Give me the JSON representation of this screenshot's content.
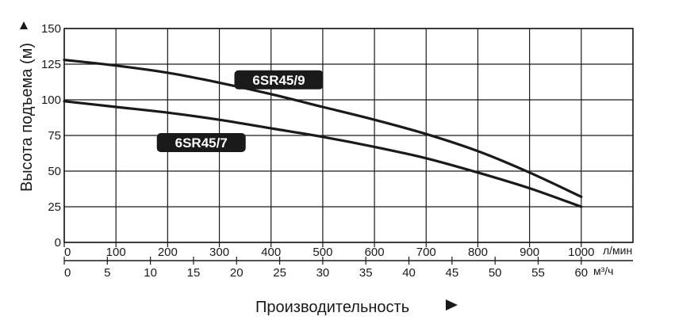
{
  "chart_data": {
    "type": "line",
    "title": "",
    "ylabel": "Высота подъема (м)",
    "xlabel": "Производительность",
    "ylim": [
      0,
      150
    ],
    "yticks": [
      0,
      25,
      50,
      75,
      100,
      125,
      150
    ],
    "x_primary": {
      "unit": "л/мин",
      "range": [
        0,
        1100
      ],
      "ticks": [
        0,
        100,
        200,
        300,
        400,
        500,
        600,
        700,
        800,
        900,
        1000
      ]
    },
    "x_secondary": {
      "unit": "м³/ч",
      "ticks": [
        0,
        5,
        10,
        15,
        20,
        25,
        30,
        35,
        40,
        45,
        50,
        55,
        60
      ]
    },
    "grid": true,
    "series": [
      {
        "name": "6SR45/9",
        "x": [
          0,
          100,
          200,
          300,
          400,
          500,
          600,
          700,
          800,
          900,
          1000
        ],
        "y": [
          128,
          124,
          119,
          112,
          104,
          95,
          86,
          76,
          64,
          49,
          32
        ]
      },
      {
        "name": "6SR45/7",
        "x": [
          0,
          100,
          200,
          300,
          400,
          500,
          600,
          700,
          800,
          900,
          1000
        ],
        "y": [
          99,
          95,
          91,
          86,
          80,
          74,
          67,
          59,
          49,
          38,
          25
        ]
      }
    ]
  },
  "colors": {
    "curve": "#1a1a1a",
    "grid": "#1a1a1a",
    "tag_bg": "#1a1a1a",
    "tag_text": "#ffffff"
  }
}
